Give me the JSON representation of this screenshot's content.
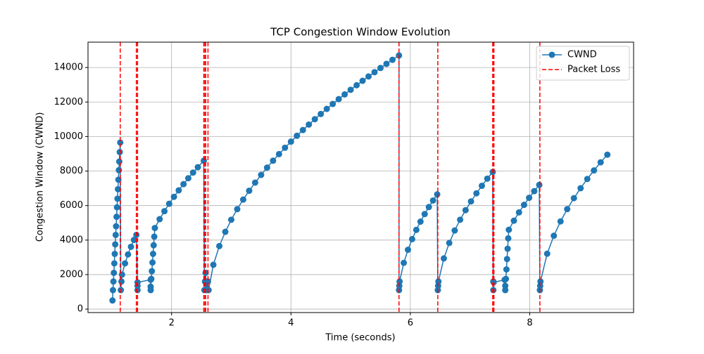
{
  "chart_data": {
    "type": "line",
    "title": "TCP Congestion Window Evolution",
    "x_label": "Time (seconds)",
    "y_label": "Congestion Window (CWND)",
    "xlim": [
      0.6,
      9.74
    ],
    "ylim": [
      -200,
      15470
    ],
    "xticks": [
      2,
      4,
      6,
      8
    ],
    "yticks": [
      0,
      2000,
      4000,
      6000,
      8000,
      10000,
      12000,
      14000
    ],
    "grid": true,
    "legend": "upper right",
    "x": [
      1.01,
      1.018,
      1.026,
      1.033,
      1.041,
      1.048,
      1.056,
      1.064,
      1.071,
      1.079,
      1.086,
      1.094,
      1.102,
      1.109,
      1.117,
      1.124,
      1.132,
      1.14,
      1.15,
      1.16,
      1.17,
      1.22,
      1.27,
      1.32,
      1.37,
      1.41,
      1.43,
      1.43,
      1.43,
      1.65,
      1.65,
      1.65,
      1.66,
      1.67,
      1.68,
      1.69,
      1.7,
      1.71,
      1.72,
      1.8,
      1.88,
      1.96,
      2.04,
      2.12,
      2.2,
      2.28,
      2.36,
      2.44,
      2.54,
      2.55,
      2.56,
      2.57,
      2.58,
      2.59,
      2.6,
      2.61,
      2.62,
      2.7,
      2.8,
      2.9,
      3.0,
      3.1,
      3.2,
      3.3,
      3.4,
      3.5,
      3.6,
      3.7,
      3.8,
      3.9,
      4.0,
      4.1,
      4.2,
      4.3,
      4.4,
      4.5,
      4.6,
      4.7,
      4.8,
      4.9,
      5.0,
      5.1,
      5.2,
      5.3,
      5.4,
      5.5,
      5.6,
      5.7,
      5.81,
      5.81,
      5.815,
      5.82,
      5.89,
      5.96,
      6.03,
      6.1,
      6.17,
      6.24,
      6.31,
      6.38,
      6.45,
      6.46,
      6.465,
      6.47,
      6.561,
      6.652,
      6.743,
      6.834,
      6.925,
      7.016,
      7.107,
      7.198,
      7.289,
      7.38,
      7.39,
      7.39,
      7.395,
      7.58,
      7.59,
      7.59,
      7.6,
      7.61,
      7.62,
      7.63,
      7.64,
      7.65,
      7.735,
      7.82,
      7.905,
      7.99,
      8.075,
      8.16,
      8.17,
      8.175,
      8.18,
      8.292,
      8.404,
      8.516,
      8.628,
      8.74,
      8.852,
      8.964,
      9.076,
      9.188,
      9.3
    ],
    "series": [
      {
        "name": "CWND",
        "color": "#1f77b4",
        "values": [
          500,
          1100,
          1600,
          2100,
          2650,
          3200,
          3750,
          4300,
          4800,
          5350,
          5900,
          6400,
          6950,
          7500,
          8050,
          8550,
          9100,
          9650,
          1100,
          1600,
          2000,
          2649,
          3168,
          3613,
          4009,
          4300,
          1100,
          1350,
          1550,
          1700,
          1100,
          1300,
          1750,
          2200,
          2700,
          3200,
          3700,
          4200,
          4700,
          5211,
          5675,
          6105,
          6506,
          6884,
          7242,
          7584,
          7911,
          8224,
          8600,
          1100,
          1600,
          2100,
          1100,
          1600,
          1100,
          1600,
          1100,
          2569,
          3652,
          4480,
          5178,
          5792,
          6347,
          6857,
          7332,
          7777,
          8199,
          8600,
          8983,
          9351,
          9704,
          10045,
          10375,
          10695,
          11005,
          11307,
          11601,
          11888,
          12168,
          12442,
          12709,
          12972,
          13229,
          13481,
          13728,
          13972,
          14211,
          14446,
          14700,
          1100,
          1350,
          1600,
          2681,
          3438,
          4056,
          4591,
          5070,
          5508,
          5913,
          6293,
          6650,
          1100,
          1350,
          1600,
          2937,
          3832,
          4555,
          5179,
          5734,
          6241,
          6709,
          7146,
          7559,
          7950,
          1100,
          1600,
          1550,
          1700,
          1100,
          1350,
          1750,
          2300,
          2900,
          3500,
          4100,
          4600,
          5126,
          5603,
          6042,
          6451,
          6836,
          7200,
          1100,
          1350,
          1600,
          3211,
          4251,
          5081,
          5795,
          6429,
          7006,
          7539,
          8037,
          8506,
          8950
        ]
      }
    ],
    "packet_loss": {
      "name": "Packet Loss",
      "color": "#ff0000",
      "x": [
        1.14,
        1.41,
        1.43,
        2.54,
        2.56,
        2.57,
        2.61,
        5.81,
        6.46,
        7.38,
        7.39,
        7.4,
        8.17
      ]
    }
  }
}
